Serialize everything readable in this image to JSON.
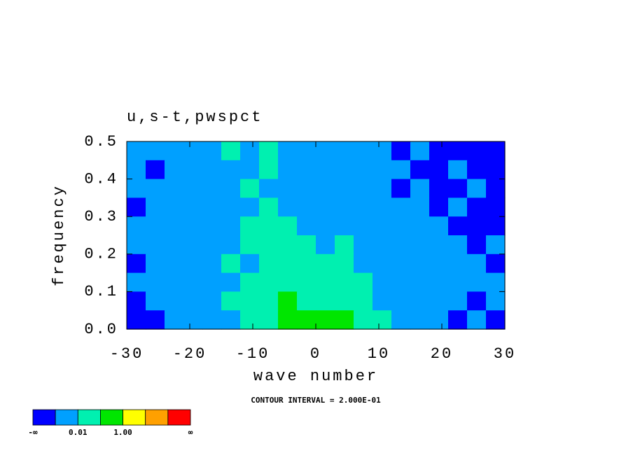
{
  "chart_data": {
    "type": "contour",
    "title": "u,s-t,pwspct",
    "xlabel": "wave number",
    "ylabel": "frequency",
    "note": "CONTOUR INTERVAL = 2.000E-01",
    "xlim": [
      -30,
      30
    ],
    "ylim": [
      0,
      0.5
    ],
    "xticks": [
      -30,
      -20,
      -10,
      0,
      10,
      20,
      30
    ],
    "yticks": [
      {
        "value": 0,
        "label": "0.0"
      },
      0.1,
      0.2,
      0.3,
      0.4,
      0.5
    ],
    "levels": [
      [
        1,
        1,
        1,
        1,
        1,
        2,
        1,
        2,
        1,
        1,
        1,
        1,
        1,
        1,
        0,
        1,
        0,
        0,
        0,
        0
      ],
      [
        1,
        0,
        1,
        1,
        1,
        1,
        1,
        2,
        1,
        1,
        1,
        1,
        1,
        1,
        1,
        0,
        0,
        1,
        0,
        0
      ],
      [
        1,
        1,
        1,
        1,
        1,
        1,
        2,
        1,
        1,
        1,
        1,
        1,
        1,
        1,
        0,
        1,
        0,
        0,
        1,
        0
      ],
      [
        0,
        1,
        1,
        1,
        1,
        1,
        1,
        2,
        1,
        1,
        1,
        1,
        1,
        1,
        1,
        1,
        0,
        1,
        0,
        0
      ],
      [
        1,
        1,
        1,
        1,
        1,
        1,
        2,
        2,
        2,
        1,
        1,
        1,
        1,
        1,
        1,
        1,
        1,
        0,
        0,
        0
      ],
      [
        1,
        1,
        1,
        1,
        1,
        1,
        2,
        2,
        2,
        2,
        1,
        2,
        1,
        1,
        1,
        1,
        1,
        1,
        0,
        1
      ],
      [
        0,
        1,
        1,
        1,
        1,
        2,
        1,
        2,
        2,
        2,
        2,
        2,
        1,
        1,
        1,
        1,
        1,
        1,
        1,
        0
      ],
      [
        1,
        1,
        1,
        1,
        1,
        1,
        2,
        2,
        2,
        2,
        2,
        2,
        2,
        1,
        1,
        1,
        1,
        1,
        1,
        1
      ],
      [
        0,
        1,
        1,
        1,
        1,
        2,
        2,
        2,
        3,
        2,
        2,
        2,
        2,
        1,
        1,
        1,
        1,
        1,
        0,
        1
      ],
      [
        0,
        0,
        1,
        1,
        1,
        1,
        2,
        2,
        3,
        3,
        3,
        3,
        2,
        2,
        1,
        1,
        1,
        0,
        1,
        0
      ]
    ],
    "colorbar": {
      "colors": [
        "#0000ff",
        "#00a0ff",
        "#00f0b0",
        "#00e600",
        "#ffff00",
        "#ffa000",
        "#ff0000"
      ],
      "labels": [
        "-∞",
        null,
        "0.01",
        null,
        "1.00",
        null,
        null,
        "∞"
      ]
    }
  }
}
